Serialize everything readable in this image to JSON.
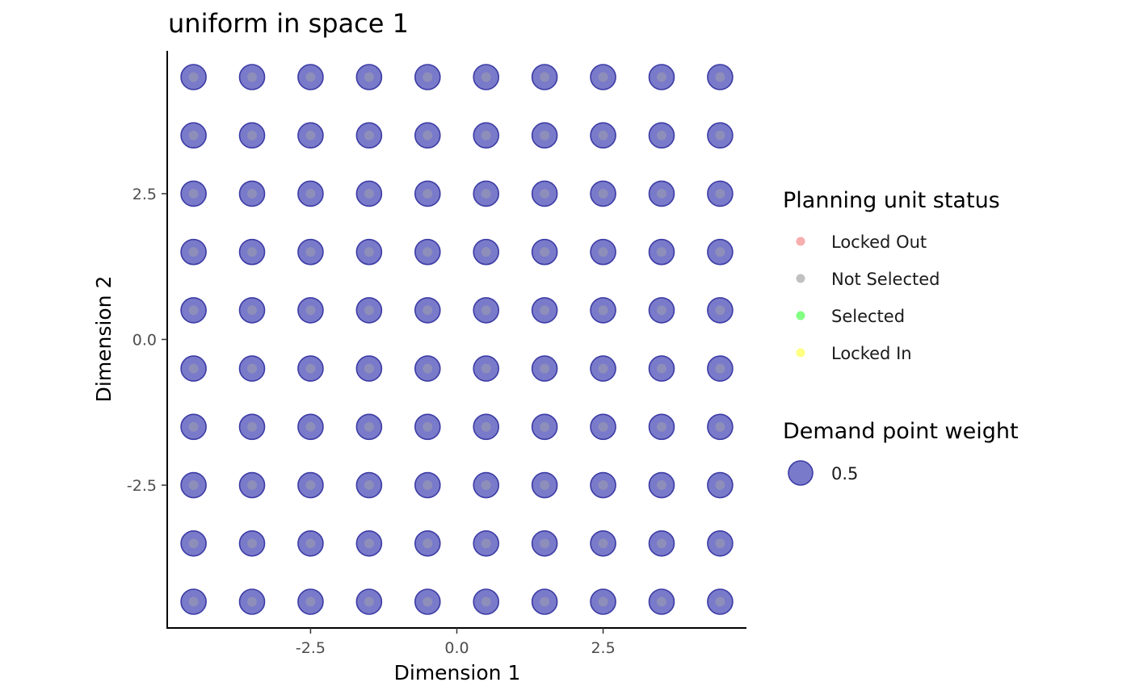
{
  "chart_data": {
    "type": "scatter",
    "title": "uniform in space 1",
    "xlabel": "Dimension 1",
    "ylabel": "Dimension 2",
    "xlim": [
      -4.95,
      4.95
    ],
    "ylim": [
      -4.95,
      4.95
    ],
    "x_ticks": [
      {
        "value": -2.5,
        "label": "-2.5"
      },
      {
        "value": 0.0,
        "label": "0.0"
      },
      {
        "value": 2.5,
        "label": "2.5"
      }
    ],
    "y_ticks": [
      {
        "value": 2.5,
        "label": "2.5"
      },
      {
        "value": 0.0,
        "label": "0.0"
      },
      {
        "value": -2.5,
        "label": "-2.5"
      }
    ],
    "grid": false,
    "demand_points": {
      "x": [
        -4.5,
        -3.5,
        -2.5,
        -1.5,
        -0.5,
        0.5,
        1.5,
        2.5,
        3.5,
        4.5
      ],
      "y": [
        4.5,
        3.5,
        2.5,
        1.5,
        0.5,
        -0.5,
        -1.5,
        -2.5,
        -3.5,
        -4.5
      ],
      "weight": 0.5,
      "color": "#5555bb"
    },
    "planning_units": {
      "x": [
        -4.5,
        -3.5,
        -2.5,
        -1.5,
        -0.5,
        0.5,
        1.5,
        2.5,
        3.5,
        4.5
      ],
      "y": [
        4.5,
        3.5,
        2.5,
        1.5,
        0.5,
        -0.5,
        -1.5,
        -2.5,
        -3.5,
        -4.5
      ],
      "status": "Not Selected"
    },
    "legend_placement": "right",
    "legend": {
      "status_title": "Planning unit status",
      "status_items": [
        {
          "label": "Locked Out",
          "color": "#f28b8b"
        },
        {
          "label": "Not Selected",
          "color": "#a6a6a6"
        },
        {
          "label": "Selected",
          "color": "#4dff4d"
        },
        {
          "label": "Locked In",
          "color": "#ffff4d"
        }
      ],
      "weight_title": "Demand point weight",
      "weight_items": [
        {
          "label": "0.5",
          "color": "#5555bb"
        }
      ]
    }
  }
}
